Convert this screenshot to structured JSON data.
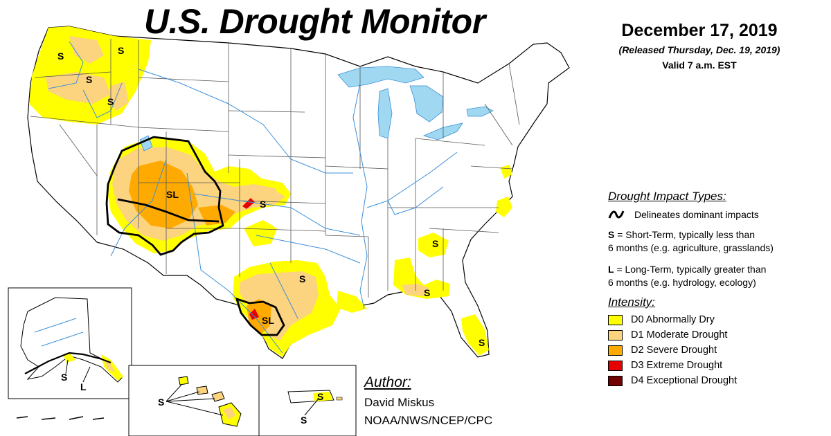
{
  "map": {
    "title": "U.S. Drought Monitor",
    "date": "December 17, 2019",
    "released": "(Released Thursday, Dec. 19, 2019)",
    "valid": "Valid 7 a.m. EST"
  },
  "impact_types": {
    "heading": "Drought Impact Types:",
    "line_description": "Delineates dominant impacts",
    "items": [
      {
        "code": "S",
        "text": " = Short-Term, typically less than",
        "text2": "6 months (e.g. agriculture, grasslands)"
      },
      {
        "code": "L",
        "text": " = Long-Term, typically greater than",
        "text2": "6 months (e.g. hydrology, ecology)"
      }
    ]
  },
  "intensity": {
    "heading": "Intensity:",
    "levels": [
      {
        "label": "D0 Abnormally Dry",
        "color": "#ffff00"
      },
      {
        "label": "D1 Moderate Drought",
        "color": "#fcd37f"
      },
      {
        "label": "D2 Severe Drought",
        "color": "#ffaa00"
      },
      {
        "label": "D3 Extreme Drought",
        "color": "#e60000"
      },
      {
        "label": "D4 Exceptional Drought",
        "color": "#730000"
      }
    ]
  },
  "author": {
    "heading": "Author:",
    "name": "David Miskus",
    "org": "NOAA/NWS/NCEP/CPC"
  },
  "map_labels": {
    "s": "S",
    "l": "L",
    "sl": "SL"
  },
  "colors": {
    "water": "#9fd8f0",
    "state_border": "#555555",
    "river": "#3c8fd8"
  }
}
